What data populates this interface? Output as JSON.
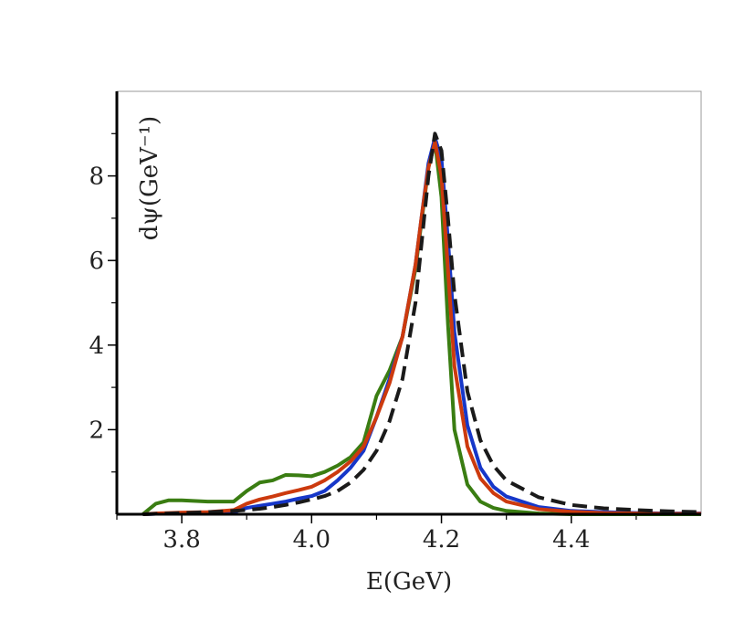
{
  "chart_data": {
    "type": "line",
    "xlabel": "E(GeV)",
    "ylabel": "dψ(GeV⁻¹)",
    "x": [
      3.74,
      3.76,
      3.78,
      3.8,
      3.84,
      3.88,
      3.9,
      3.92,
      3.94,
      3.96,
      3.98,
      4.0,
      4.02,
      4.04,
      4.06,
      4.08,
      4.1,
      4.12,
      4.14,
      4.16,
      4.17,
      4.18,
      4.19,
      4.2,
      4.21,
      4.22,
      4.24,
      4.26,
      4.28,
      4.3,
      4.35,
      4.4,
      4.45,
      4.5,
      4.55,
      4.6
    ],
    "series": [
      {
        "color": "#3a7d12",
        "linestyle": "solid",
        "values": [
          0,
          0.25,
          0.33,
          0.33,
          0.3,
          0.3,
          0.55,
          0.75,
          0.8,
          0.93,
          0.92,
          0.9,
          1.0,
          1.15,
          1.35,
          1.7,
          2.8,
          3.4,
          4.2,
          5.8,
          7.0,
          8.2,
          8.8,
          7.5,
          4.5,
          2.0,
          0.7,
          0.3,
          0.15,
          0.08,
          0.02,
          0,
          0,
          0,
          0,
          0
        ]
      },
      {
        "color": "#1637c9",
        "linestyle": "solid",
        "values": [
          0,
          0.01,
          0.02,
          0.02,
          0.03,
          0.05,
          0.15,
          0.2,
          0.25,
          0.3,
          0.37,
          0.43,
          0.55,
          0.8,
          1.1,
          1.5,
          2.3,
          3.2,
          4.2,
          5.9,
          7.1,
          8.3,
          8.9,
          8.4,
          6.5,
          4.3,
          2.1,
          1.1,
          0.65,
          0.42,
          0.17,
          0.08,
          0.05,
          0.03,
          0.02,
          0.02
        ]
      },
      {
        "color": "#cc3a0e",
        "linestyle": "solid",
        "values": [
          0,
          0.02,
          0.03,
          0.04,
          0.05,
          0.1,
          0.25,
          0.35,
          0.42,
          0.5,
          0.57,
          0.65,
          0.8,
          1.0,
          1.25,
          1.6,
          2.3,
          3.1,
          4.2,
          5.9,
          7.1,
          8.2,
          8.8,
          8.0,
          5.8,
          3.5,
          1.6,
          0.85,
          0.5,
          0.3,
          0.12,
          0.06,
          0.03,
          0.02,
          0.01,
          0.01
        ]
      },
      {
        "color": "#1a1a1a",
        "linestyle": "dashed",
        "values": [
          0,
          0.01,
          0.02,
          0.03,
          0.05,
          0.08,
          0.1,
          0.13,
          0.17,
          0.22,
          0.28,
          0.35,
          0.43,
          0.55,
          0.75,
          1.05,
          1.5,
          2.2,
          3.2,
          5.0,
          6.5,
          8.0,
          9.0,
          8.6,
          7.0,
          5.2,
          2.9,
          1.75,
          1.15,
          0.8,
          0.4,
          0.22,
          0.14,
          0.1,
          0.07,
          0.05
        ]
      }
    ],
    "xlim": [
      3.7,
      4.6
    ],
    "ylim": [
      0,
      10
    ],
    "xticks": [
      3.8,
      {
        "value": 4,
        "label": "4.0"
      },
      4.2,
      4.4
    ],
    "xminorticks": [
      3.7,
      3.9,
      4.1,
      4.3,
      4.5
    ],
    "yticks": [
      2,
      4,
      6,
      8
    ],
    "yminorticks": [
      1,
      3,
      5,
      7,
      9
    ]
  }
}
